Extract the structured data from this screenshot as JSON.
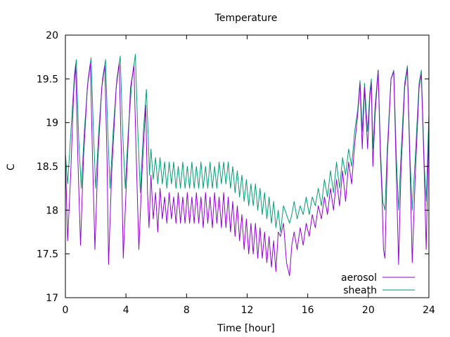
{
  "chart_data": {
    "type": "line",
    "title": "Temperature",
    "xlabel": "Time [hour]",
    "ylabel": "C",
    "xlim": [
      0,
      24
    ],
    "ylim": [
      17,
      20
    ],
    "xticks": [
      0,
      4,
      8,
      12,
      16,
      20,
      24
    ],
    "yticks": [
      17,
      17.5,
      18,
      18.5,
      19,
      19.5,
      20
    ],
    "ytick_labels": [
      "17",
      "17.5",
      "18",
      "18.5",
      "19",
      "19.5",
      "20"
    ],
    "grid": false,
    "legend_position": "bottom-right",
    "series": [
      {
        "name": "aerosol",
        "color": "#9400d3",
        "points": [
          [
            0.0,
            18.6
          ],
          [
            0.15,
            17.65
          ],
          [
            0.35,
            18.4
          ],
          [
            0.55,
            19.35
          ],
          [
            0.68,
            19.66
          ],
          [
            0.82,
            18.6
          ],
          [
            1.0,
            17.6
          ],
          [
            1.2,
            18.6
          ],
          [
            1.45,
            19.4
          ],
          [
            1.65,
            19.68
          ],
          [
            1.78,
            18.7
          ],
          [
            1.95,
            17.55
          ],
          [
            2.15,
            18.6
          ],
          [
            2.4,
            19.4
          ],
          [
            2.6,
            19.65
          ],
          [
            2.75,
            18.6
          ],
          [
            2.85,
            17.38
          ],
          [
            3.05,
            18.4
          ],
          [
            3.35,
            19.4
          ],
          [
            3.55,
            19.68
          ],
          [
            3.7,
            18.6
          ],
          [
            3.82,
            17.45
          ],
          [
            4.05,
            18.4
          ],
          [
            4.3,
            19.4
          ],
          [
            4.52,
            19.65
          ],
          [
            4.68,
            18.6
          ],
          [
            4.85,
            17.55
          ],
          [
            5.05,
            18.4
          ],
          [
            5.3,
            19.2
          ],
          [
            5.42,
            18.2
          ],
          [
            5.52,
            17.8
          ],
          [
            5.65,
            18.4
          ],
          [
            5.8,
            17.9
          ],
          [
            5.95,
            18.2
          ],
          [
            6.1,
            17.75
          ],
          [
            6.25,
            18.25
          ],
          [
            6.4,
            17.9
          ],
          [
            6.55,
            18.15
          ],
          [
            6.7,
            17.85
          ],
          [
            6.85,
            18.2
          ],
          [
            7.0,
            17.9
          ],
          [
            7.15,
            18.15
          ],
          [
            7.3,
            17.85
          ],
          [
            7.45,
            18.2
          ],
          [
            7.6,
            17.85
          ],
          [
            7.75,
            18.15
          ],
          [
            7.9,
            17.85
          ],
          [
            8.05,
            18.2
          ],
          [
            8.2,
            17.85
          ],
          [
            8.35,
            18.15
          ],
          [
            8.5,
            17.85
          ],
          [
            8.65,
            18.2
          ],
          [
            8.8,
            17.85
          ],
          [
            8.95,
            18.15
          ],
          [
            9.1,
            17.8
          ],
          [
            9.25,
            18.2
          ],
          [
            9.4,
            17.85
          ],
          [
            9.55,
            18.15
          ],
          [
            9.7,
            17.8
          ],
          [
            9.85,
            18.2
          ],
          [
            10.0,
            17.85
          ],
          [
            10.15,
            18.15
          ],
          [
            10.3,
            17.8
          ],
          [
            10.45,
            18.2
          ],
          [
            10.6,
            17.8
          ],
          [
            10.75,
            18.15
          ],
          [
            10.9,
            17.75
          ],
          [
            11.05,
            18.1
          ],
          [
            11.2,
            17.7
          ],
          [
            11.35,
            18.05
          ],
          [
            11.5,
            17.65
          ],
          [
            11.65,
            17.95
          ],
          [
            11.8,
            17.55
          ],
          [
            11.95,
            17.9
          ],
          [
            12.1,
            17.5
          ],
          [
            12.25,
            17.85
          ],
          [
            12.4,
            17.5
          ],
          [
            12.55,
            17.85
          ],
          [
            12.7,
            17.45
          ],
          [
            12.85,
            17.8
          ],
          [
            13.0,
            17.45
          ],
          [
            13.15,
            17.75
          ],
          [
            13.3,
            17.4
          ],
          [
            13.45,
            17.7
          ],
          [
            13.6,
            17.35
          ],
          [
            13.75,
            17.65
          ],
          [
            13.9,
            17.3
          ],
          [
            14.05,
            17.75
          ],
          [
            14.2,
            17.7
          ],
          [
            14.4,
            17.85
          ],
          [
            14.6,
            17.4
          ],
          [
            14.8,
            17.25
          ],
          [
            14.95,
            17.6
          ],
          [
            15.1,
            17.75
          ],
          [
            15.3,
            17.55
          ],
          [
            15.5,
            17.8
          ],
          [
            15.7,
            17.6
          ],
          [
            15.9,
            17.85
          ],
          [
            16.1,
            17.7
          ],
          [
            16.3,
            17.95
          ],
          [
            16.5,
            17.8
          ],
          [
            16.7,
            18.05
          ],
          [
            16.9,
            17.9
          ],
          [
            17.1,
            18.15
          ],
          [
            17.3,
            17.95
          ],
          [
            17.5,
            18.25
          ],
          [
            17.7,
            18.0
          ],
          [
            17.9,
            18.35
          ],
          [
            18.1,
            18.05
          ],
          [
            18.3,
            18.45
          ],
          [
            18.5,
            18.1
          ],
          [
            18.7,
            18.55
          ],
          [
            18.9,
            18.3
          ],
          [
            19.1,
            18.75
          ],
          [
            19.3,
            19.1
          ],
          [
            19.45,
            19.45
          ],
          [
            19.6,
            18.7
          ],
          [
            19.75,
            19.4
          ],
          [
            19.95,
            18.7
          ],
          [
            20.1,
            19.3
          ],
          [
            20.2,
            19.45
          ],
          [
            20.3,
            18.5
          ],
          [
            20.45,
            19.1
          ],
          [
            20.65,
            19.6
          ],
          [
            20.8,
            18.6
          ],
          [
            20.9,
            18.2
          ],
          [
            21.0,
            17.55
          ],
          [
            21.1,
            17.45
          ],
          [
            21.25,
            18.6
          ],
          [
            21.5,
            19.5
          ],
          [
            21.68,
            19.58
          ],
          [
            21.85,
            18.4
          ],
          [
            22.0,
            17.38
          ],
          [
            22.15,
            18.4
          ],
          [
            22.4,
            19.4
          ],
          [
            22.58,
            19.62
          ],
          [
            22.75,
            18.5
          ],
          [
            22.9,
            17.4
          ],
          [
            23.1,
            18.4
          ],
          [
            23.35,
            19.4
          ],
          [
            23.5,
            19.55
          ],
          [
            23.7,
            18.4
          ],
          [
            23.82,
            17.55
          ],
          [
            24.0,
            19.0
          ]
        ]
      },
      {
        "name": "sheath",
        "color": "#009e73",
        "points": [
          [
            0.0,
            18.65
          ],
          [
            0.15,
            18.3
          ],
          [
            0.4,
            19.0
          ],
          [
            0.6,
            19.55
          ],
          [
            0.72,
            19.72
          ],
          [
            0.88,
            18.8
          ],
          [
            1.05,
            18.25
          ],
          [
            1.25,
            18.9
          ],
          [
            1.5,
            19.5
          ],
          [
            1.7,
            19.74
          ],
          [
            1.85,
            18.9
          ],
          [
            2.0,
            18.25
          ],
          [
            2.2,
            18.9
          ],
          [
            2.45,
            19.5
          ],
          [
            2.65,
            19.72
          ],
          [
            2.8,
            18.9
          ],
          [
            2.95,
            18.25
          ],
          [
            3.15,
            18.9
          ],
          [
            3.4,
            19.5
          ],
          [
            3.62,
            19.76
          ],
          [
            3.78,
            18.9
          ],
          [
            3.95,
            18.25
          ],
          [
            4.15,
            18.9
          ],
          [
            4.4,
            19.5
          ],
          [
            4.62,
            19.78
          ],
          [
            4.78,
            18.9
          ],
          [
            4.95,
            18.2
          ],
          [
            5.15,
            18.9
          ],
          [
            5.35,
            19.38
          ],
          [
            5.48,
            18.8
          ],
          [
            5.55,
            18.4
          ],
          [
            5.65,
            18.7
          ],
          [
            5.8,
            18.35
          ],
          [
            5.95,
            18.6
          ],
          [
            6.1,
            18.3
          ],
          [
            6.25,
            18.6
          ],
          [
            6.4,
            18.3
          ],
          [
            6.55,
            18.55
          ],
          [
            6.7,
            18.25
          ],
          [
            6.85,
            18.55
          ],
          [
            7.0,
            18.3
          ],
          [
            7.15,
            18.55
          ],
          [
            7.3,
            18.25
          ],
          [
            7.45,
            18.5
          ],
          [
            7.6,
            18.25
          ],
          [
            7.75,
            18.55
          ],
          [
            7.9,
            18.25
          ],
          [
            8.05,
            18.5
          ],
          [
            8.2,
            18.25
          ],
          [
            8.35,
            18.55
          ],
          [
            8.5,
            18.25
          ],
          [
            8.65,
            18.5
          ],
          [
            8.8,
            18.25
          ],
          [
            8.95,
            18.55
          ],
          [
            9.1,
            18.25
          ],
          [
            9.25,
            18.5
          ],
          [
            9.4,
            18.25
          ],
          [
            9.55,
            18.55
          ],
          [
            9.7,
            18.25
          ],
          [
            9.85,
            18.5
          ],
          [
            10.0,
            18.25
          ],
          [
            10.15,
            18.55
          ],
          [
            10.3,
            18.3
          ],
          [
            10.45,
            18.55
          ],
          [
            10.6,
            18.3
          ],
          [
            10.75,
            18.55
          ],
          [
            10.9,
            18.25
          ],
          [
            11.05,
            18.5
          ],
          [
            11.2,
            18.2
          ],
          [
            11.35,
            18.45
          ],
          [
            11.5,
            18.15
          ],
          [
            11.65,
            18.4
          ],
          [
            11.8,
            18.1
          ],
          [
            11.95,
            18.35
          ],
          [
            12.1,
            18.05
          ],
          [
            12.25,
            18.3
          ],
          [
            12.4,
            18.05
          ],
          [
            12.55,
            18.3
          ],
          [
            12.7,
            18.0
          ],
          [
            12.85,
            18.25
          ],
          [
            13.0,
            17.95
          ],
          [
            13.15,
            18.2
          ],
          [
            13.3,
            17.9
          ],
          [
            13.45,
            18.15
          ],
          [
            13.6,
            17.85
          ],
          [
            13.75,
            18.1
          ],
          [
            13.9,
            17.8
          ],
          [
            14.05,
            18.0
          ],
          [
            14.2,
            17.75
          ],
          [
            14.4,
            18.05
          ],
          [
            14.6,
            17.95
          ],
          [
            14.8,
            17.85
          ],
          [
            14.95,
            17.95
          ],
          [
            15.1,
            18.1
          ],
          [
            15.3,
            17.9
          ],
          [
            15.5,
            18.05
          ],
          [
            15.7,
            17.95
          ],
          [
            15.9,
            18.15
          ],
          [
            16.1,
            17.95
          ],
          [
            16.3,
            18.15
          ],
          [
            16.5,
            18.05
          ],
          [
            16.7,
            18.25
          ],
          [
            16.9,
            18.05
          ],
          [
            17.1,
            18.35
          ],
          [
            17.3,
            18.15
          ],
          [
            17.5,
            18.45
          ],
          [
            17.7,
            18.2
          ],
          [
            17.9,
            18.55
          ],
          [
            18.1,
            18.25
          ],
          [
            18.3,
            18.6
          ],
          [
            18.5,
            18.4
          ],
          [
            18.7,
            18.7
          ],
          [
            18.9,
            18.5
          ],
          [
            19.1,
            18.9
          ],
          [
            19.3,
            19.15
          ],
          [
            19.45,
            19.48
          ],
          [
            19.6,
            18.9
          ],
          [
            19.75,
            19.45
          ],
          [
            19.95,
            18.9
          ],
          [
            20.1,
            19.35
          ],
          [
            20.2,
            19.5
          ],
          [
            20.3,
            18.7
          ],
          [
            20.45,
            19.2
          ],
          [
            20.65,
            19.6
          ],
          [
            20.8,
            18.7
          ],
          [
            20.95,
            18.1
          ],
          [
            21.1,
            18.0
          ],
          [
            21.25,
            18.7
          ],
          [
            21.5,
            19.5
          ],
          [
            21.68,
            19.6
          ],
          [
            21.85,
            18.6
          ],
          [
            22.0,
            18.0
          ],
          [
            22.15,
            18.6
          ],
          [
            22.4,
            19.45
          ],
          [
            22.58,
            19.65
          ],
          [
            22.75,
            18.6
          ],
          [
            22.9,
            18.0
          ],
          [
            23.1,
            18.6
          ],
          [
            23.35,
            19.45
          ],
          [
            23.5,
            19.6
          ],
          [
            23.7,
            18.5
          ],
          [
            23.82,
            18.1
          ],
          [
            24.0,
            19.1
          ]
        ]
      }
    ]
  }
}
